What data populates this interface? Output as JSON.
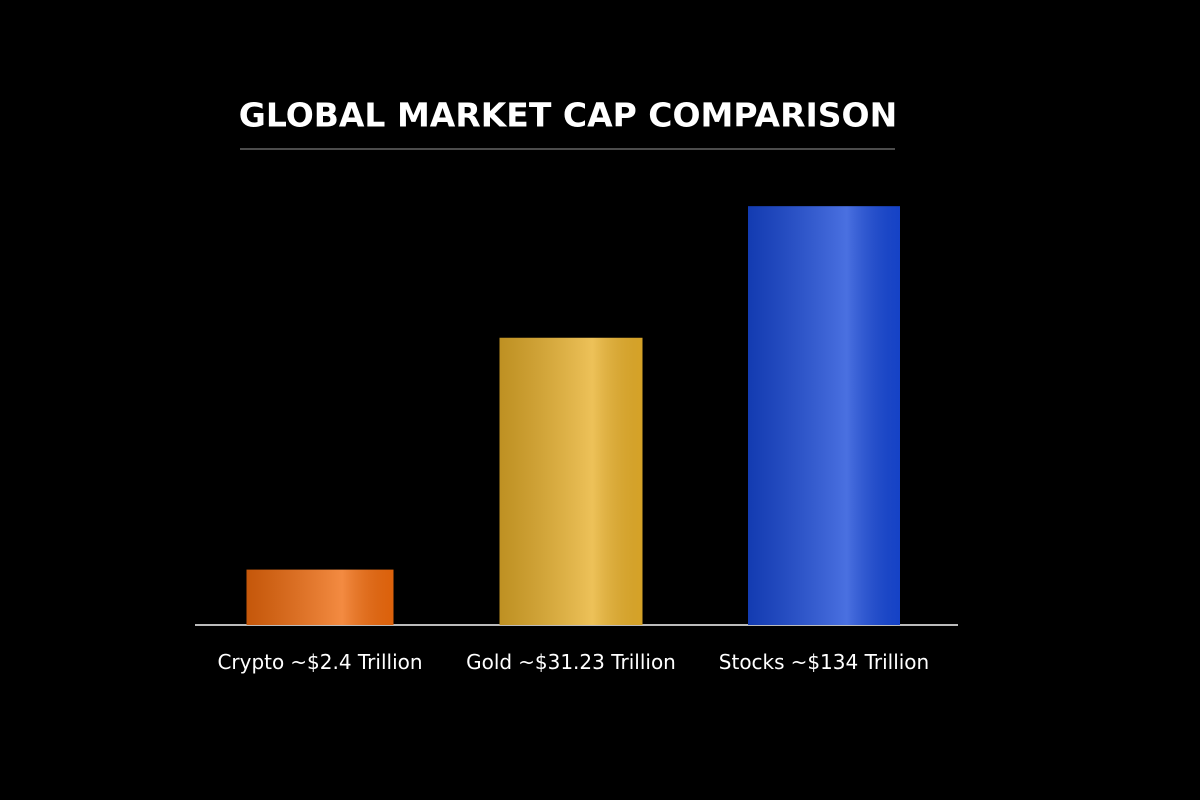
{
  "chart_data": {
    "type": "bar",
    "title": "GLOBAL MARKET CAP COMPARISON",
    "categories": [
      "Crypto",
      "Gold",
      "Stocks"
    ],
    "values": [
      2.4,
      31.23,
      134
    ],
    "value_labels": [
      "~$2.4 Trillion",
      "~$31.23 Trillion",
      "~$134 Trillion"
    ],
    "colors": [
      "#f06a0c",
      "#e8b02a",
      "#1748d8"
    ],
    "log_scale": true,
    "ylim": [
      1.3,
      200
    ]
  }
}
